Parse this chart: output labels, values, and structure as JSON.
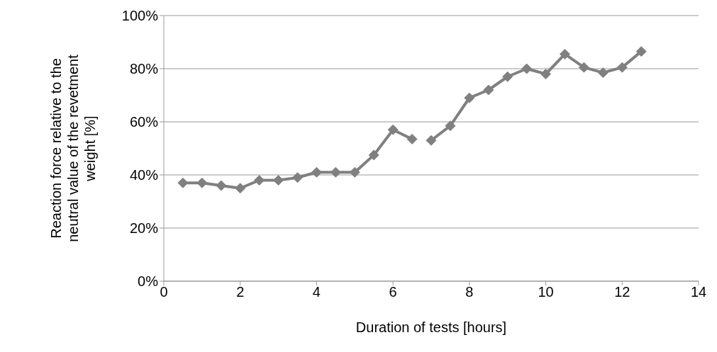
{
  "chart_data": {
    "type": "line",
    "xlabel": "Duration of tests [hours]",
    "ylabel": "Reaction force relative to the neutral value of the revetment weight [%]",
    "series": [
      {
        "color": "#808080",
        "x": [
          0.5,
          1,
          1.5,
          2,
          2.5,
          3,
          3.5,
          4,
          4.5,
          5,
          5.5,
          6,
          6.5
        ],
        "values": [
          37,
          37,
          36,
          35,
          38,
          38,
          39,
          41,
          41,
          41,
          47.5,
          57,
          53.5
        ]
      },
      {
        "color": "#808080",
        "x": [
          7,
          7.5,
          8,
          8.5,
          9,
          9.5,
          10,
          10.5,
          11,
          11.5,
          12,
          12.5
        ],
        "values": [
          53,
          58.5,
          69,
          72,
          77,
          80,
          78,
          85.5,
          80.5,
          78.5,
          80.5,
          86.5
        ]
      }
    ],
    "xlim": [
      0,
      14
    ],
    "xticks": [
      0,
      2,
      4,
      6,
      8,
      10,
      12,
      14
    ],
    "ylim": [
      0,
      100
    ],
    "yticks": [
      {
        "value": 0,
        "label": "0%"
      },
      {
        "value": 20,
        "label": "20%"
      },
      {
        "value": 40,
        "label": "40%"
      },
      {
        "value": 60,
        "label": "60%"
      },
      {
        "value": 80,
        "label": "80%"
      },
      {
        "value": 100,
        "label": "100%"
      }
    ],
    "grid": "y",
    "marker": "diamond",
    "line_style": "solid"
  }
}
